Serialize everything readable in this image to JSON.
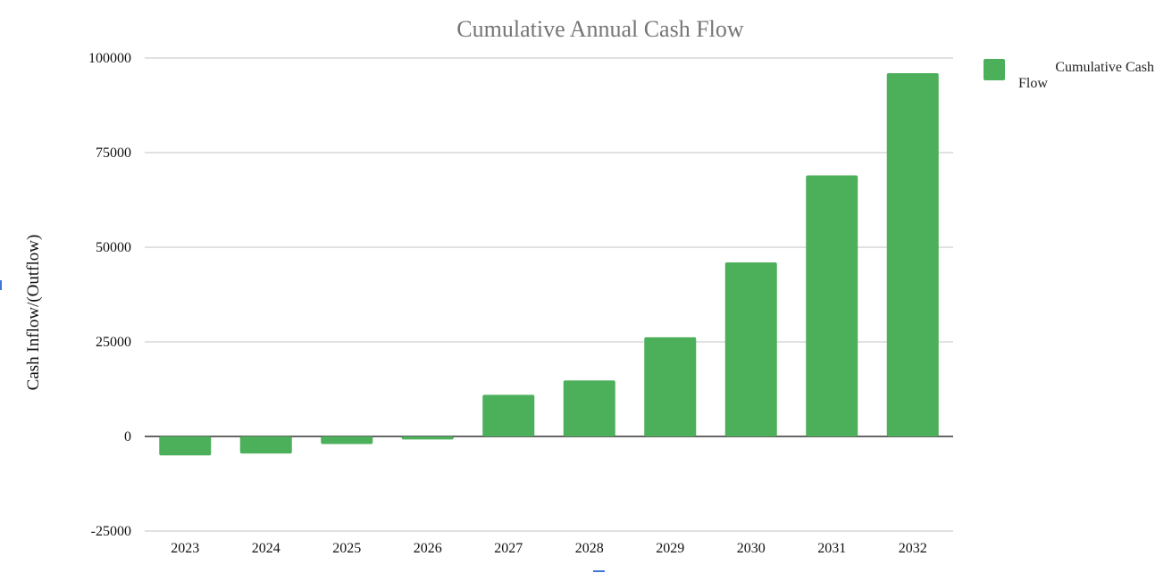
{
  "chart_data": {
    "type": "bar",
    "title": "Cumulative Annual Cash Flow",
    "xlabel": "",
    "ylabel": "Cash Inflow/(Outflow)",
    "categories": [
      "2023",
      "2024",
      "2025",
      "2026",
      "2027",
      "2028",
      "2029",
      "2030",
      "2031",
      "2032"
    ],
    "series": [
      {
        "name": "Cumulative Cash Flow",
        "values": [
          -5000,
          -4500,
          -2000,
          -800,
          11000,
          14800,
          26200,
          46000,
          69000,
          96000
        ],
        "color": "#4caf5a"
      }
    ],
    "ylim": [
      -25000,
      100000
    ],
    "yticks": [
      100000,
      75000,
      50000,
      25000,
      0,
      -25000
    ],
    "grid": true,
    "legend": {
      "position": "right",
      "label_line_1": "Cumulative Cash",
      "label_line_2": "Flow"
    }
  }
}
